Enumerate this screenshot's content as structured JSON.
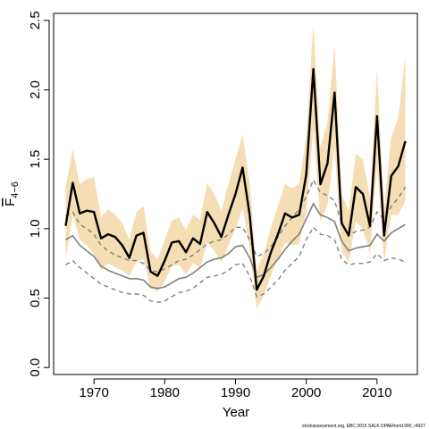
{
  "chart_data": {
    "type": "line",
    "xlabel": "Year",
    "ylabel": "F",
    "ylabel_sub": "4−6",
    "xlim": [
      1964.3,
      2015.7
    ],
    "ylim": [
      -0.05,
      2.55
    ],
    "x_ticks": [
      1970,
      1980,
      1990,
      2000,
      2010
    ],
    "y_ticks": [
      0.0,
      0.5,
      1.0,
      1.5,
      2.0,
      2.5
    ],
    "y_tick_labels": [
      "0.0",
      "0.5",
      "1.0",
      "1.5",
      "2.0",
      "2.5"
    ],
    "grid": false,
    "credit": "stockassessment.org, EBC 2015 SALK DPAEfrom1900, r4927",
    "colors": {
      "band": "#f5deb3",
      "main": "#000000",
      "second": "#808080"
    },
    "x": [
      1966,
      1967,
      1968,
      1969,
      1970,
      1971,
      1972,
      1973,
      1974,
      1975,
      1976,
      1977,
      1978,
      1979,
      1980,
      1981,
      1982,
      1983,
      1984,
      1985,
      1986,
      1987,
      1988,
      1989,
      1990,
      1991,
      1992,
      1993,
      1994,
      1995,
      1996,
      1997,
      1998,
      1999,
      2000,
      2001,
      2002,
      2003,
      2004,
      2005,
      2006,
      2007,
      2008,
      2009,
      2010,
      2011,
      2012,
      2013,
      2014
    ],
    "series": [
      {
        "role": "estimate",
        "values": [
          1.02,
          1.33,
          1.11,
          1.13,
          1.12,
          0.93,
          0.96,
          0.94,
          0.88,
          0.79,
          0.95,
          0.97,
          0.69,
          0.66,
          0.77,
          0.9,
          0.91,
          0.83,
          0.93,
          0.89,
          1.12,
          1.04,
          0.94,
          1.1,
          1.25,
          1.44,
          1.1,
          0.56,
          0.66,
          0.83,
          0.96,
          1.11,
          1.08,
          1.1,
          1.39,
          2.15,
          1.32,
          1.47,
          1.98,
          1.04,
          0.95,
          1.3,
          1.25,
          1.02,
          1.81,
          0.95,
          1.38,
          1.45,
          1.63
        ],
        "lower": [
          0.78,
          1.1,
          0.92,
          0.88,
          0.82,
          0.7,
          0.75,
          0.72,
          0.7,
          0.66,
          0.76,
          0.78,
          0.57,
          0.55,
          0.62,
          0.73,
          0.74,
          0.67,
          0.75,
          0.72,
          0.9,
          0.84,
          0.76,
          0.88,
          1.0,
          1.15,
          0.86,
          0.42,
          0.52,
          0.66,
          0.78,
          0.9,
          0.88,
          0.89,
          1.12,
          1.72,
          1.05,
          1.17,
          1.58,
          0.84,
          0.76,
          1.05,
          1.0,
          0.82,
          1.46,
          0.76,
          1.1,
          1.1,
          1.2
        ],
        "upper": [
          1.3,
          1.57,
          1.32,
          1.36,
          1.37,
          1.08,
          1.14,
          1.1,
          1.04,
          0.92,
          1.12,
          1.16,
          0.84,
          0.78,
          0.92,
          1.06,
          1.08,
          0.99,
          1.1,
          1.06,
          1.33,
          1.25,
          1.13,
          1.32,
          1.5,
          1.68,
          1.33,
          0.7,
          0.82,
          1.01,
          1.16,
          1.32,
          1.29,
          1.32,
          1.66,
          2.48,
          1.58,
          1.77,
          2.32,
          1.25,
          1.13,
          1.54,
          1.5,
          1.22,
          2.15,
          1.14,
          1.66,
          1.8,
          2.24
        ]
      },
      {
        "role": "comparison",
        "values": [
          0.92,
          0.95,
          0.88,
          0.84,
          0.8,
          0.73,
          0.7,
          0.68,
          0.66,
          0.64,
          0.64,
          0.63,
          0.58,
          0.57,
          0.58,
          0.61,
          0.64,
          0.65,
          0.68,
          0.72,
          0.76,
          0.78,
          0.79,
          0.82,
          0.87,
          0.88,
          0.79,
          0.65,
          0.67,
          0.72,
          0.78,
          0.85,
          0.91,
          0.96,
          1.07,
          1.18,
          1.1,
          1.08,
          1.05,
          0.91,
          0.84,
          0.86,
          0.87,
          0.88,
          0.96,
          0.91,
          0.97,
          1.0,
          1.03
        ],
        "lower": [
          0.74,
          0.77,
          0.72,
          0.68,
          0.64,
          0.6,
          0.58,
          0.56,
          0.54,
          0.53,
          0.53,
          0.52,
          0.48,
          0.47,
          0.48,
          0.51,
          0.54,
          0.55,
          0.57,
          0.61,
          0.65,
          0.66,
          0.67,
          0.7,
          0.74,
          0.75,
          0.66,
          0.51,
          0.53,
          0.58,
          0.63,
          0.7,
          0.75,
          0.8,
          0.92,
          1.01,
          0.96,
          0.95,
          0.92,
          0.78,
          0.74,
          0.75,
          0.75,
          0.76,
          0.82,
          0.77,
          0.79,
          0.78,
          0.76
        ],
        "upper": [
          1.09,
          1.12,
          1.03,
          1.0,
          0.96,
          0.88,
          0.84,
          0.81,
          0.79,
          0.77,
          0.77,
          0.75,
          0.7,
          0.69,
          0.71,
          0.74,
          0.77,
          0.78,
          0.81,
          0.85,
          0.89,
          0.91,
          0.92,
          0.96,
          1.01,
          1.01,
          0.92,
          0.8,
          0.82,
          0.87,
          0.94,
          1.02,
          1.08,
          1.14,
          1.23,
          1.35,
          1.26,
          1.24,
          1.2,
          1.04,
          0.95,
          0.98,
          0.99,
          1.01,
          1.12,
          1.07,
          1.16,
          1.22,
          1.3
        ]
      }
    ]
  }
}
